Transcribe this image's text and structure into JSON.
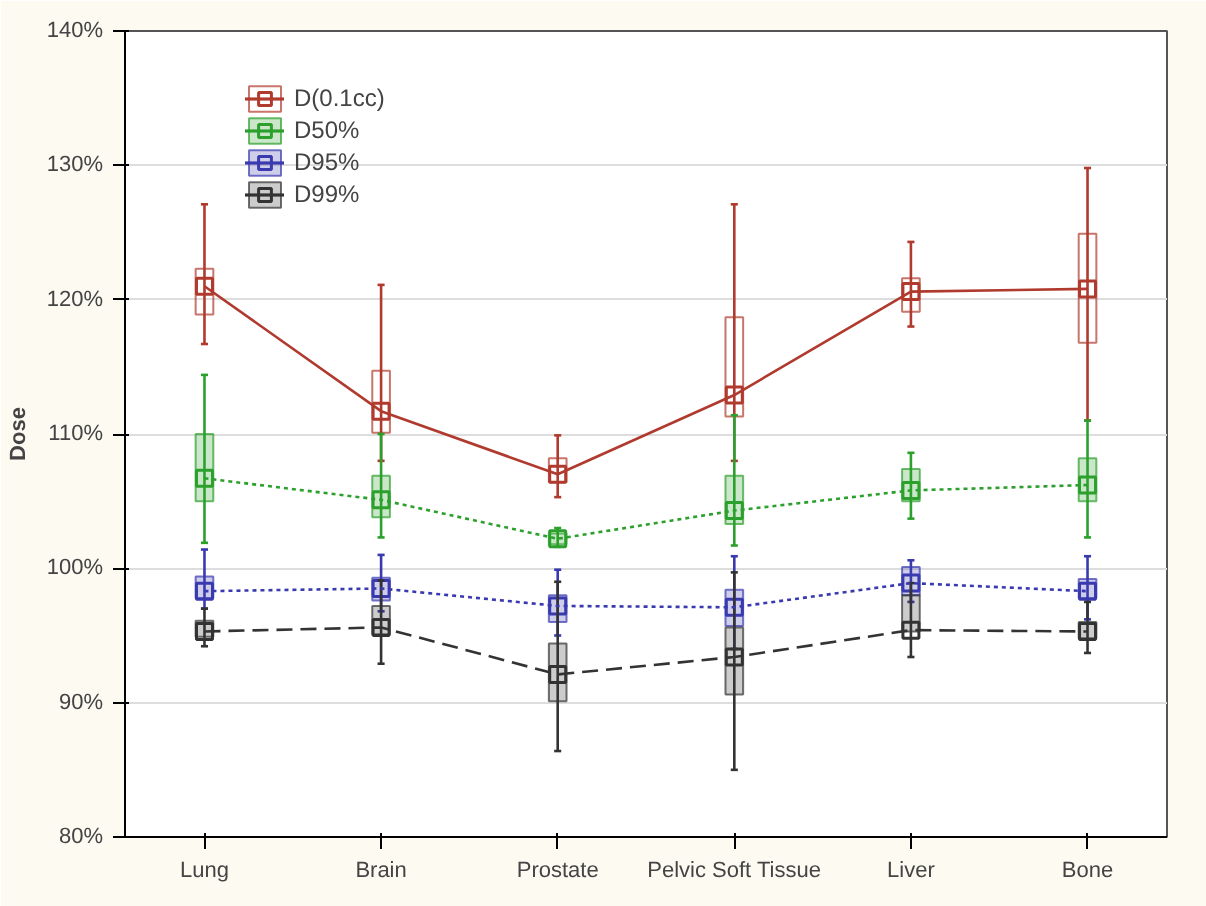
{
  "chart_data": {
    "type": "box",
    "ylabel": "Dose",
    "categories": [
      "Lung",
      "Brain",
      "Prostate",
      "Pelvic Soft Tissue",
      "Liver",
      "Bone"
    ],
    "ylim": [
      80,
      140
    ],
    "yticks": [
      {
        "value": 80,
        "label": "80%"
      },
      {
        "value": 90,
        "label": "90%"
      },
      {
        "value": 100,
        "label": "100%"
      },
      {
        "value": 110,
        "label": "110%"
      },
      {
        "value": 120,
        "label": "120%"
      },
      {
        "value": 130,
        "label": "130%"
      },
      {
        "value": 140,
        "label": "140%"
      }
    ],
    "grid": "y",
    "legend": "top left",
    "marker": "square",
    "series": [
      {
        "name": "D(0.1cc)",
        "color": "#b03a2e",
        "boxes": [
          {
            "low": 116.7,
            "q1": 118.9,
            "median": 121.0,
            "q3": 122.3,
            "high": 127.1
          },
          {
            "low": 108.0,
            "q1": 110.1,
            "median": 111.7,
            "q3": 114.7,
            "high": 121.1
          },
          {
            "low": 105.3,
            "q1": 106.4,
            "median": 107.0,
            "q3": 108.2,
            "high": 109.9
          },
          {
            "low": 108.0,
            "q1": 111.3,
            "median": 112.9,
            "q3": 118.7,
            "high": 127.1
          },
          {
            "low": 118.0,
            "q1": 119.1,
            "median": 120.6,
            "q3": 121.6,
            "high": 124.3
          },
          {
            "low": 111.0,
            "q1": 116.8,
            "median": 120.8,
            "q3": 124.9,
            "high": 129.8
          }
        ]
      },
      {
        "name": "D50%",
        "color": "#2ca02c",
        "boxes": [
          {
            "low": 101.9,
            "q1": 105.0,
            "median": 106.7,
            "q3": 110.0,
            "high": 114.4
          },
          {
            "low": 102.3,
            "q1": 103.8,
            "median": 105.1,
            "q3": 106.9,
            "high": 110.0
          },
          {
            "low": 101.6,
            "q1": 101.8,
            "median": 102.2,
            "q3": 102.6,
            "high": 103.0
          },
          {
            "low": 101.7,
            "q1": 103.3,
            "median": 104.3,
            "q3": 106.9,
            "high": 111.4
          },
          {
            "low": 103.7,
            "q1": 105.0,
            "median": 105.8,
            "q3": 107.4,
            "high": 108.6
          },
          {
            "low": 102.3,
            "q1": 105.0,
            "median": 106.2,
            "q3": 108.2,
            "high": 111.0
          }
        ]
      },
      {
        "name": "D95%",
        "color": "#3a3ab0",
        "boxes": [
          {
            "low": 97.0,
            "q1": 97.8,
            "median": 98.3,
            "q3": 99.4,
            "high": 101.4
          },
          {
            "low": 96.8,
            "q1": 97.6,
            "median": 98.5,
            "q3": 99.3,
            "high": 101.0
          },
          {
            "low": 95.0,
            "q1": 96.0,
            "median": 97.2,
            "q3": 98.0,
            "high": 99.9
          },
          {
            "low": 94.0,
            "q1": 95.7,
            "median": 97.1,
            "q3": 98.4,
            "high": 100.9
          },
          {
            "low": 97.5,
            "q1": 98.0,
            "median": 98.9,
            "q3": 100.1,
            "high": 100.6
          },
          {
            "low": 96.2,
            "q1": 97.8,
            "median": 98.3,
            "q3": 99.2,
            "high": 100.9
          }
        ]
      },
      {
        "name": "D99%",
        "color": "#333333",
        "boxes": [
          {
            "low": 94.2,
            "q1": 94.9,
            "median": 95.3,
            "q3": 96.1,
            "high": 97.0
          },
          {
            "low": 92.9,
            "q1": 95.1,
            "median": 95.6,
            "q3": 97.2,
            "high": 99.1
          },
          {
            "low": 86.4,
            "q1": 90.1,
            "median": 92.1,
            "q3": 94.4,
            "high": 99.0
          },
          {
            "low": 85.0,
            "q1": 90.6,
            "median": 93.4,
            "q3": 95.6,
            "high": 99.7
          },
          {
            "low": 93.4,
            "q1": 95.3,
            "median": 95.4,
            "q3": 98.0,
            "high": 98.9
          },
          {
            "low": 93.7,
            "q1": 94.8,
            "median": 95.3,
            "q3": 96.0,
            "high": 97.5
          }
        ]
      },
      {
        "type": "line",
        "marker": "none",
        "color": "#b03a2e",
        "line_style": "solid",
        "values": [
          121.0,
          111.7,
          107.0,
          112.9,
          120.6,
          120.8
        ]
      },
      {
        "type": "line",
        "marker": "none",
        "color": "#2ca02c",
        "line_style": "dotted",
        "values": [
          106.7,
          105.1,
          102.2,
          104.3,
          105.8,
          106.2
        ]
      },
      {
        "type": "line",
        "marker": "none",
        "color": "#3a3ab0",
        "line_style": "dotted",
        "values": [
          98.3,
          98.5,
          97.2,
          97.1,
          98.9,
          98.3
        ]
      },
      {
        "type": "line",
        "marker": "none",
        "color": "#333333",
        "line_style": "dashed",
        "values": [
          95.3,
          95.6,
          92.1,
          93.4,
          95.4,
          95.3
        ]
      }
    ]
  }
}
